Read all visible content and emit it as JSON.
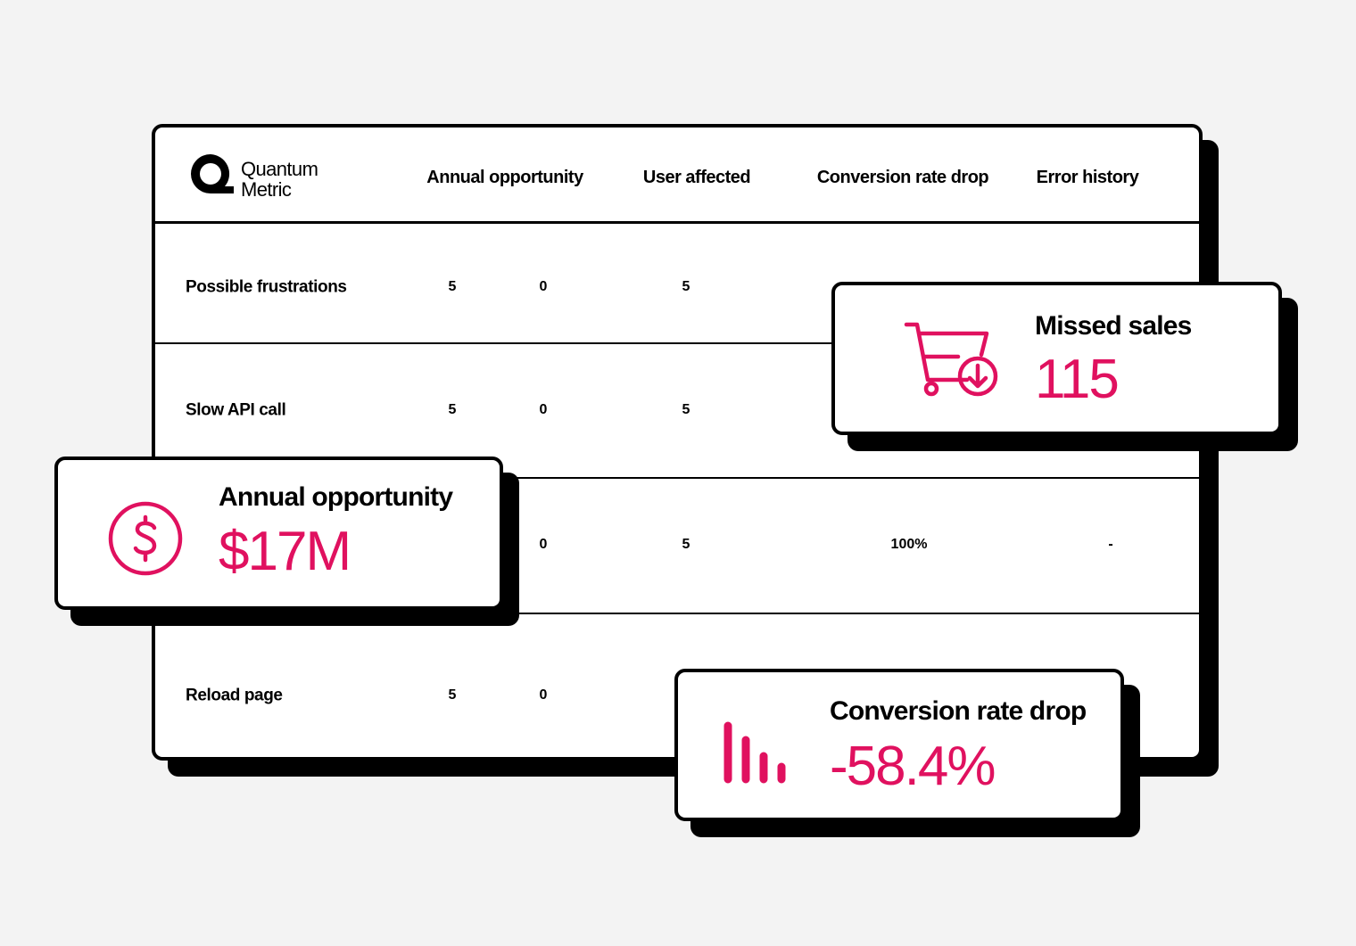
{
  "logo": {
    "line1": "Quantum",
    "line2": "Metric"
  },
  "table": {
    "headers": [
      "Annual opportunity",
      "User affected",
      "Conversion rate drop",
      "Error history"
    ],
    "rows": [
      [
        "Possible frustrations",
        "5",
        "0",
        "5",
        null,
        null
      ],
      [
        "Slow API call",
        "5",
        "0",
        "5",
        null,
        null
      ],
      [
        null,
        null,
        "0",
        "5",
        "100%",
        "-"
      ],
      [
        "Reload page",
        "5",
        "0",
        null,
        null,
        null
      ]
    ]
  },
  "cards": {
    "missed_sales": {
      "title": "Missed sales",
      "value": "115"
    },
    "annual_opportunity": {
      "title": "Annual opportunity",
      "value": "$17M"
    },
    "conversion_rate_drop": {
      "title": "Conversion rate drop",
      "value": "-58.4%"
    }
  }
}
